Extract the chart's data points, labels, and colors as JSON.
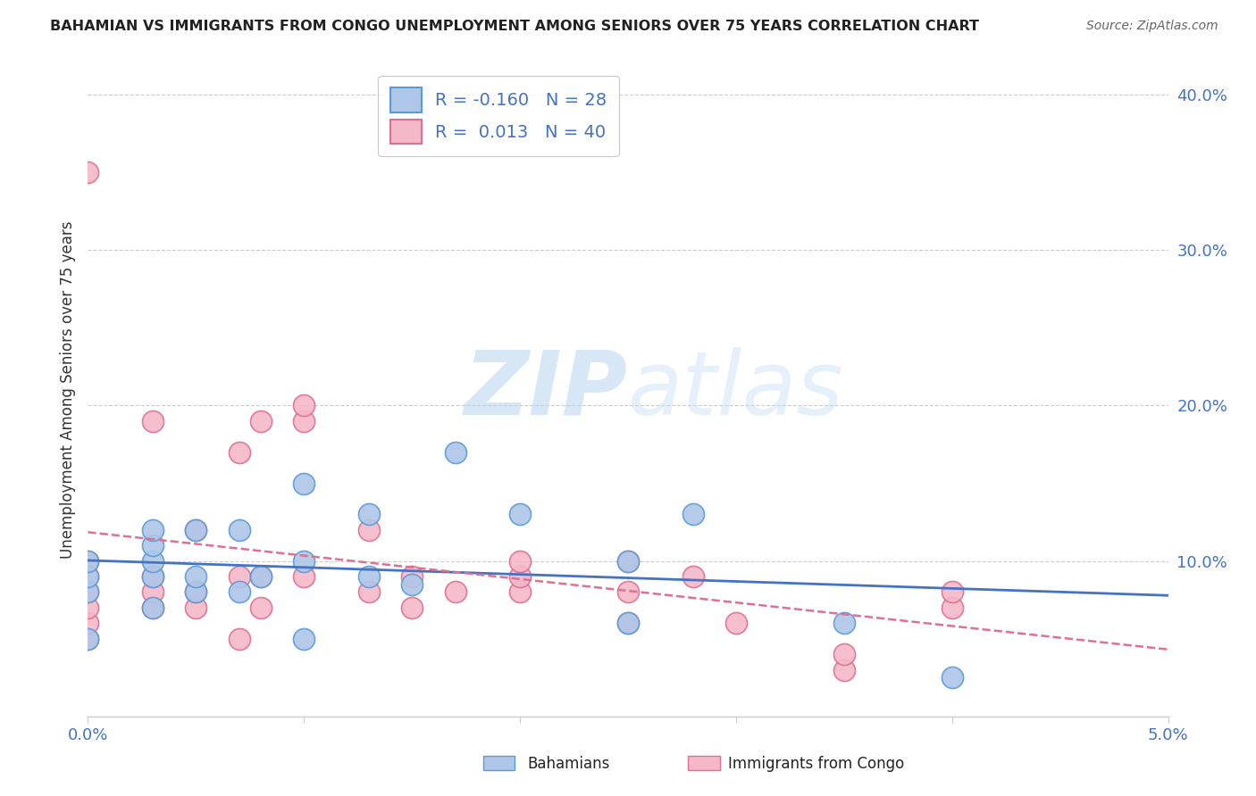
{
  "title": "BAHAMIAN VS IMMIGRANTS FROM CONGO UNEMPLOYMENT AMONG SENIORS OVER 75 YEARS CORRELATION CHART",
  "source": "Source: ZipAtlas.com",
  "ylabel": "Unemployment Among Seniors over 75 years",
  "xlim": [
    0.0,
    0.05
  ],
  "ylim": [
    0.0,
    0.42
  ],
  "yticks": [
    0.0,
    0.1,
    0.2,
    0.3,
    0.4
  ],
  "ytick_labels": [
    "",
    "10.0%",
    "20.0%",
    "30.0%",
    "40.0%"
  ],
  "xtick_labels": [
    "0.0%",
    "5.0%"
  ],
  "watermark_zip": "ZIP",
  "watermark_atlas": "atlas",
  "legend_r1": "-0.160",
  "legend_n1": "28",
  "legend_r2": "0.013",
  "legend_n2": "40",
  "bahamian_color": "#aec6e8",
  "bahamian_edge": "#5b9bd5",
  "congo_color": "#f4b8c8",
  "congo_edge": "#e07090",
  "trend_bahamian_color": "#4472c4",
  "trend_congo_color": "#e07090",
  "background_color": "#ffffff",
  "grid_color": "#cccccc",
  "tick_color": "#4472c4",
  "bahamians_x": [
    0.0,
    0.0,
    0.0,
    0.0,
    0.003,
    0.003,
    0.003,
    0.003,
    0.003,
    0.005,
    0.005,
    0.005,
    0.007,
    0.007,
    0.008,
    0.01,
    0.01,
    0.01,
    0.013,
    0.013,
    0.015,
    0.017,
    0.02,
    0.025,
    0.025,
    0.028,
    0.035,
    0.04
  ],
  "bahamians_y": [
    0.08,
    0.09,
    0.1,
    0.05,
    0.07,
    0.09,
    0.1,
    0.11,
    0.12,
    0.08,
    0.09,
    0.12,
    0.08,
    0.12,
    0.09,
    0.05,
    0.1,
    0.15,
    0.09,
    0.13,
    0.085,
    0.17,
    0.13,
    0.1,
    0.06,
    0.13,
    0.06,
    0.025
  ],
  "congo_x": [
    0.0,
    0.0,
    0.0,
    0.0,
    0.0,
    0.0,
    0.0,
    0.003,
    0.003,
    0.003,
    0.003,
    0.005,
    0.005,
    0.005,
    0.007,
    0.007,
    0.007,
    0.008,
    0.008,
    0.008,
    0.01,
    0.01,
    0.01,
    0.013,
    0.013,
    0.015,
    0.015,
    0.017,
    0.02,
    0.02,
    0.02,
    0.025,
    0.025,
    0.025,
    0.028,
    0.03,
    0.035,
    0.035,
    0.04,
    0.04
  ],
  "congo_y": [
    0.05,
    0.06,
    0.07,
    0.08,
    0.09,
    0.1,
    0.35,
    0.07,
    0.08,
    0.09,
    0.19,
    0.07,
    0.08,
    0.12,
    0.05,
    0.09,
    0.17,
    0.07,
    0.09,
    0.19,
    0.09,
    0.19,
    0.2,
    0.08,
    0.12,
    0.07,
    0.09,
    0.08,
    0.08,
    0.09,
    0.1,
    0.06,
    0.08,
    0.1,
    0.09,
    0.06,
    0.03,
    0.04,
    0.07,
    0.08
  ]
}
